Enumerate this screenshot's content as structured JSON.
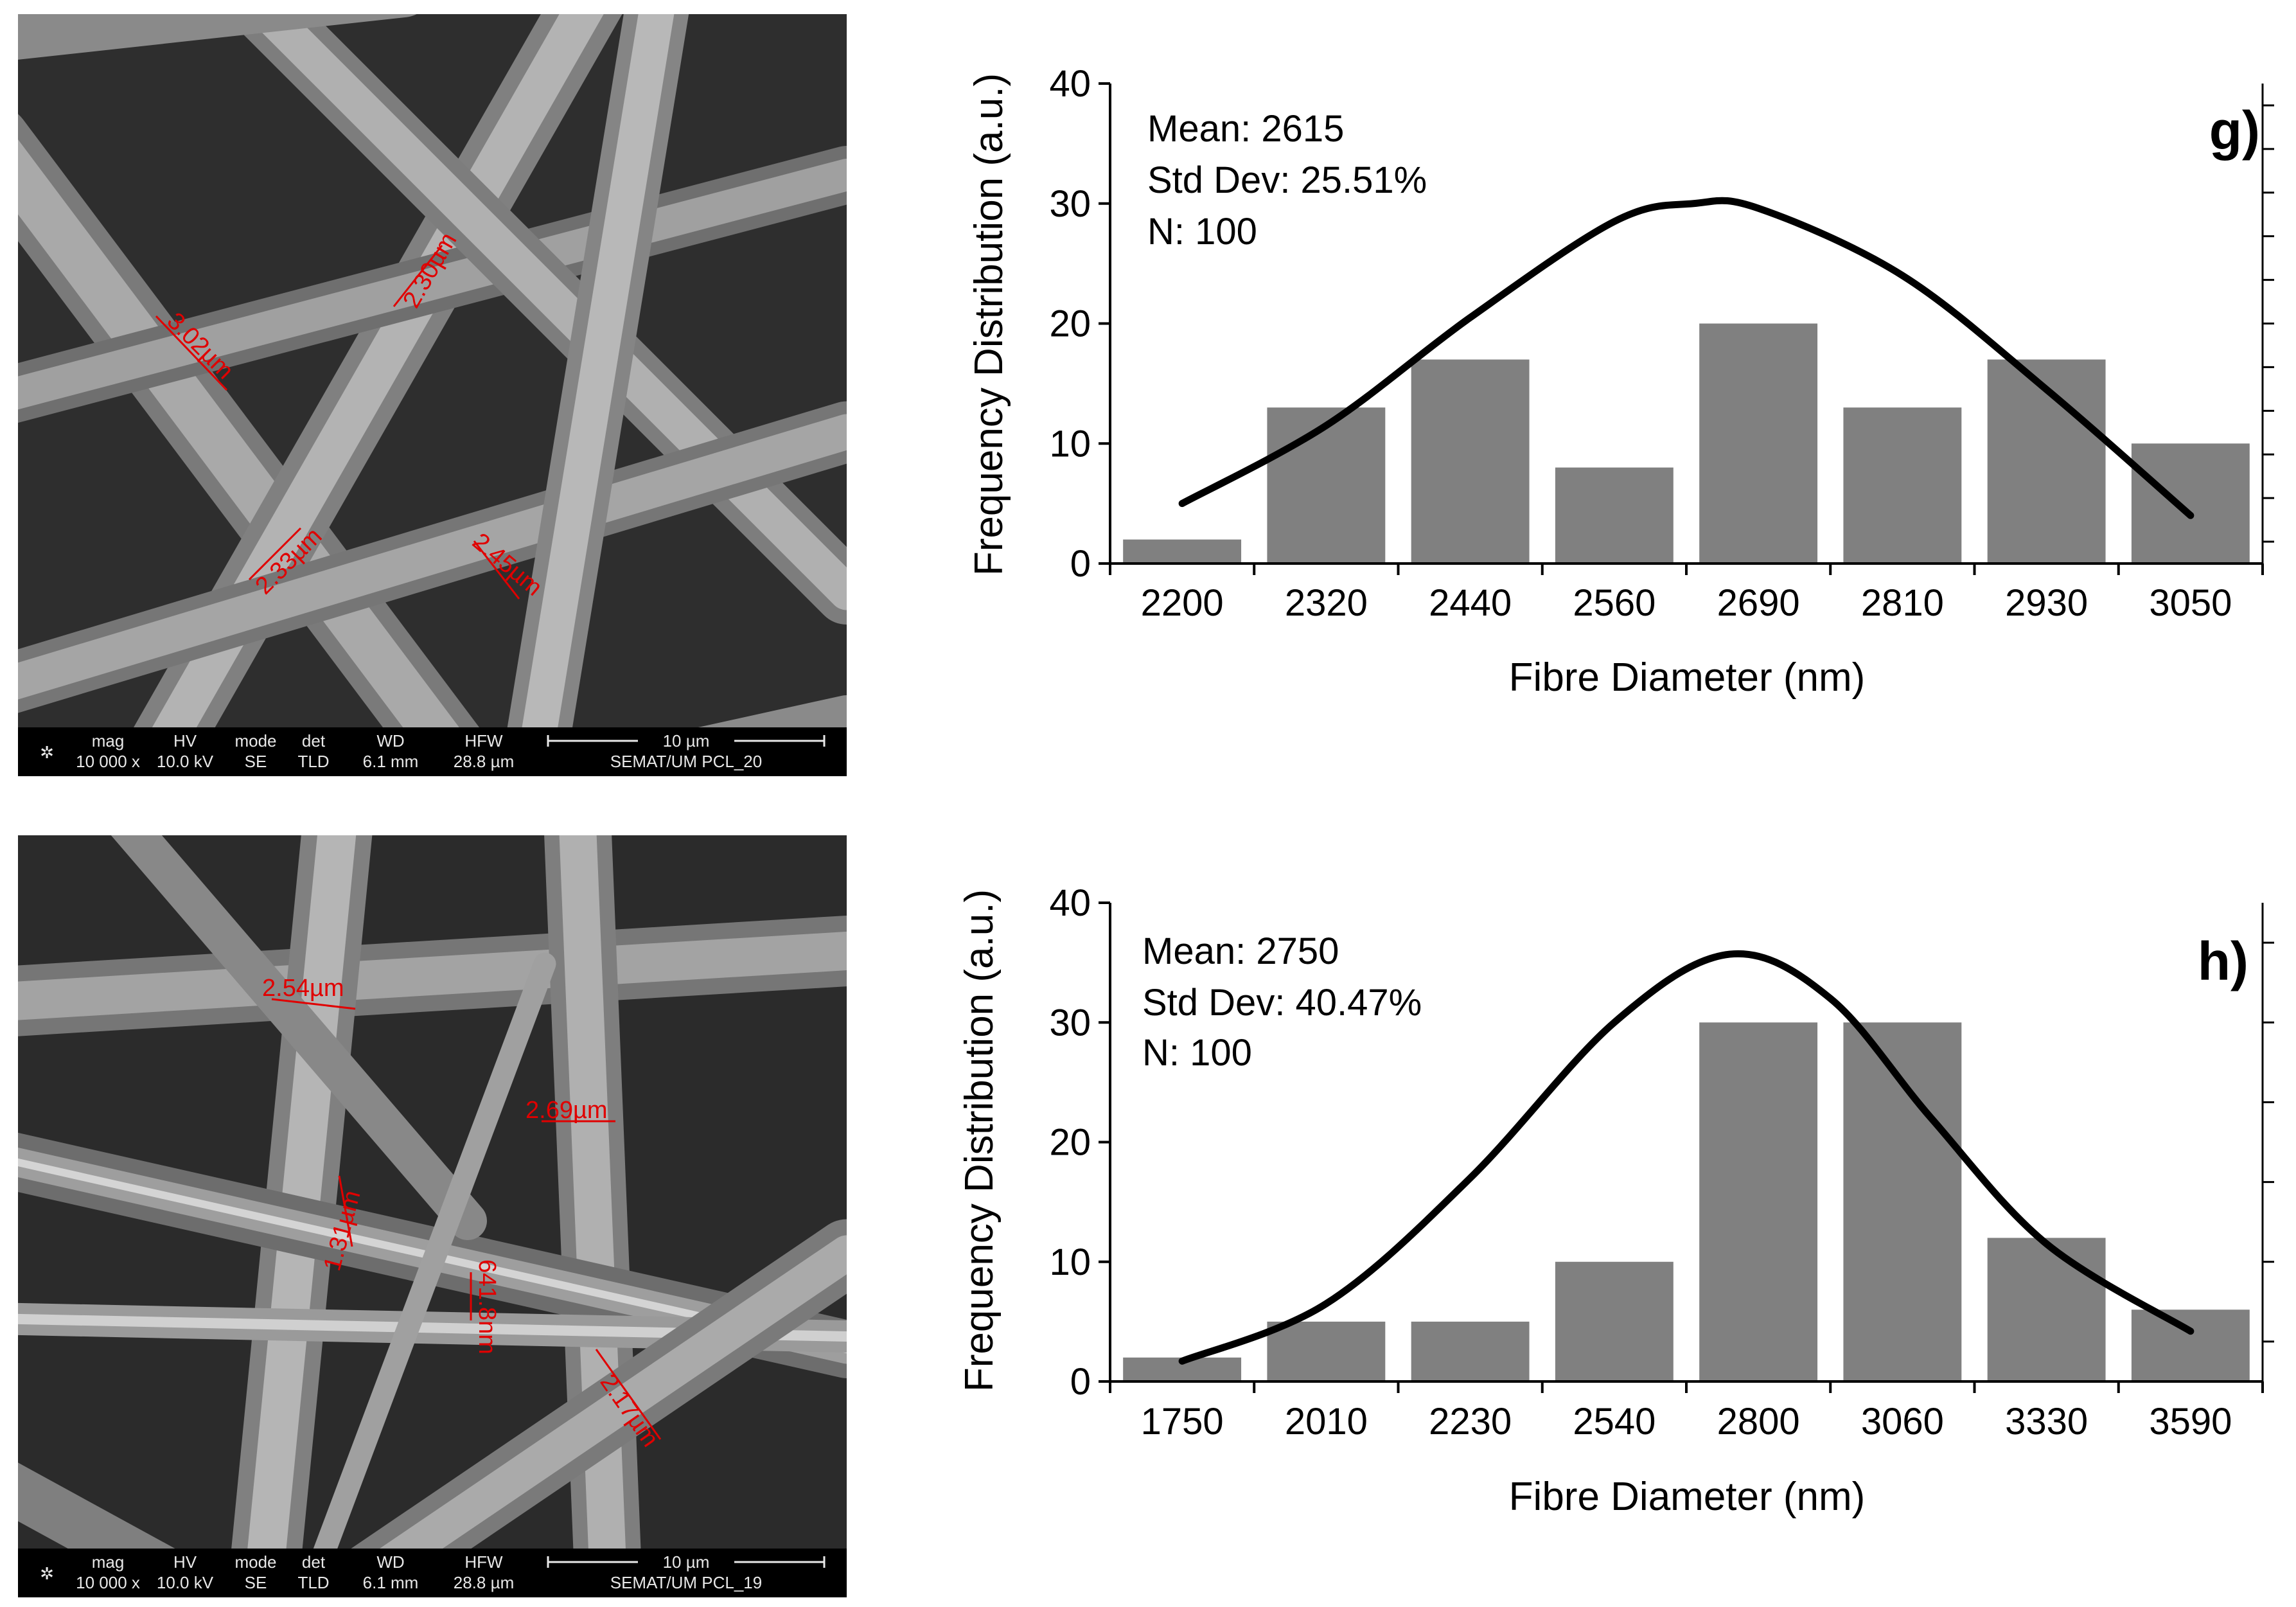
{
  "sem_images": [
    {
      "measurements": [
        "3.02µm",
        "2.30µm",
        "2.33µm",
        "2.45µm"
      ],
      "infobar": {
        "labels": [
          "mag",
          "HV",
          "mode",
          "det",
          "WD",
          "HFW"
        ],
        "values": [
          "10 000 x",
          "10.0 kV",
          "SE",
          "TLD",
          "6.1 mm",
          "28.8 µm"
        ],
        "scale": "10 µm",
        "sample": "SEMAT/UM PCL_20"
      }
    },
    {
      "measurements": [
        "2.54µm",
        "2.69µm",
        "1.31µm",
        "641.8nm",
        "2.17µm"
      ],
      "infobar": {
        "labels": [
          "mag",
          "HV",
          "mode",
          "det",
          "WD",
          "HFW"
        ],
        "values": [
          "10 000 x",
          "10.0 kV",
          "SE",
          "TLD",
          "6.1 mm",
          "28.8 µm"
        ],
        "scale": "10 µm",
        "sample": "SEMAT/UM PCL_19"
      }
    }
  ],
  "chart_data": [
    {
      "type": "bar",
      "panel_label": "g)",
      "categories": [
        "2200",
        "2320",
        "2440",
        "2560",
        "2690",
        "2810",
        "2930",
        "3050"
      ],
      "values": [
        2,
        13,
        17,
        8,
        20,
        13,
        17,
        10
      ],
      "fit_curve": [
        [
          0,
          5
        ],
        [
          1,
          11.5
        ],
        [
          2,
          20.5
        ],
        [
          3,
          28.5
        ],
        [
          3.55,
          30
        ],
        [
          4,
          29.6
        ],
        [
          5,
          24
        ],
        [
          6,
          14.5
        ],
        [
          7,
          4
        ]
      ],
      "stats": [
        "Mean: 2615",
        "Std Dev: 25.51%",
        "N: 100"
      ],
      "xlabel": "Fibre Diameter (nm)",
      "ylabel": "Frequency Distribution (a.u.)",
      "ylim": [
        0,
        40
      ],
      "yticks": [
        "0",
        "10",
        "20",
        "30",
        "40"
      ],
      "bar_color": "#808080"
    },
    {
      "type": "bar",
      "panel_label": "h)",
      "categories": [
        "1750",
        "2010",
        "2230",
        "2540",
        "2800",
        "3060",
        "3330",
        "3590"
      ],
      "values": [
        2,
        5,
        5,
        10,
        30,
        30,
        12,
        6
      ],
      "fit_curve": [
        [
          0,
          1.7
        ],
        [
          1,
          6.5
        ],
        [
          2,
          17
        ],
        [
          3,
          30
        ],
        [
          3.8,
          35.7
        ],
        [
          4.5,
          32
        ],
        [
          5.2,
          22
        ],
        [
          6,
          11.5
        ],
        [
          7,
          4.2
        ]
      ],
      "stats": [
        "Mean: 2750",
        "Std Dev: 40.47%",
        "N: 100"
      ],
      "xlabel": "Fibre Diameter (nm)",
      "ylabel": "Frequency Distribution (a.u.)",
      "ylim": [
        0,
        40
      ],
      "yticks": [
        "0",
        "10",
        "20",
        "30",
        "40"
      ],
      "bar_color": "#808080"
    }
  ]
}
